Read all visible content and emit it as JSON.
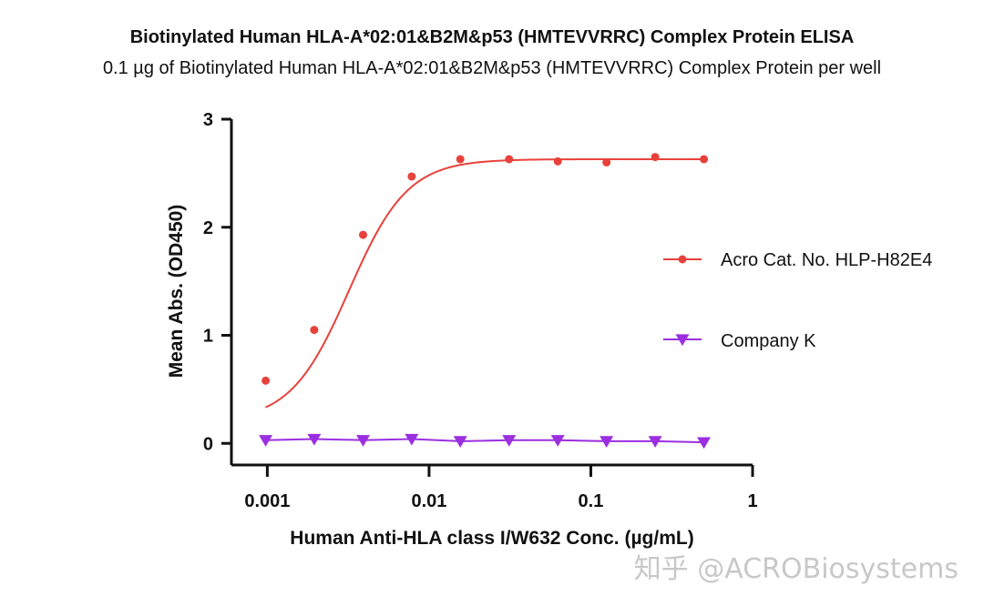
{
  "chart_data": {
    "type": "scatter",
    "title": "Biotinylated Human HLA-A*02:01&B2M&p53 (HMTEVVRRC) Complex Protein ELISA",
    "subtitle": "0.1 µg of Biotinylated Human HLA-A*02:01&B2M&p53 (HMTEVVRRC) Complex Protein per well",
    "xlabel": "Human Anti-HLA class I/W632 Conc. (µg/mL)",
    "ylabel": "Mean Abs. (OD450)",
    "x_scale": "log",
    "xlim": [
      0.0006,
      1
    ],
    "ylim": [
      -0.2,
      3
    ],
    "x_ticks": [
      "0.001",
      "0.01",
      "0.1",
      "1"
    ],
    "x_tick_values": [
      0.001,
      0.01,
      0.1,
      1
    ],
    "y_ticks": [
      "0",
      "1",
      "2",
      "3"
    ],
    "y_tick_values": [
      0,
      1,
      2,
      3
    ],
    "legend_position": "right",
    "series": [
      {
        "name": "Acro  Cat. No. HLP-H82E4",
        "color": "#e8413b",
        "marker": "circle",
        "fit": "4PL",
        "x": [
          0.000977,
          0.00195,
          0.00391,
          0.00781,
          0.0156,
          0.03125,
          0.0625,
          0.125,
          0.25,
          0.5
        ],
        "y": [
          0.58,
          1.05,
          1.93,
          2.47,
          2.63,
          2.63,
          2.61,
          2.6,
          2.65,
          2.63
        ]
      },
      {
        "name": "Company K",
        "color": "#9b2fe0",
        "marker": "triangle-down",
        "fit": "line",
        "x": [
          0.000977,
          0.00195,
          0.00391,
          0.00781,
          0.0156,
          0.03125,
          0.0625,
          0.125,
          0.25,
          0.5
        ],
        "y": [
          0.03,
          0.04,
          0.03,
          0.04,
          0.02,
          0.03,
          0.03,
          0.02,
          0.02,
          0.01
        ]
      }
    ]
  },
  "watermark": "知乎 @ACROBiosystems"
}
